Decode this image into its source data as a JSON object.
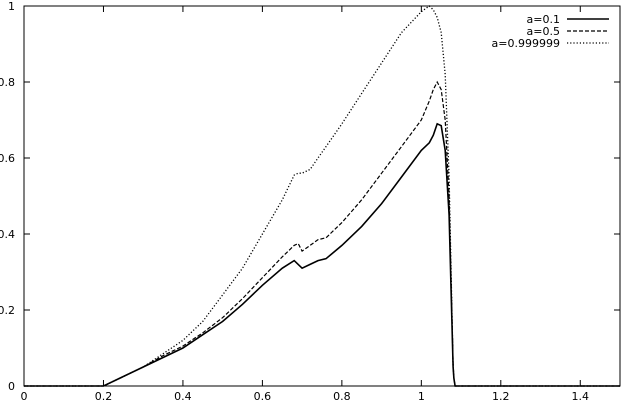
{
  "chart_data": {
    "type": "line",
    "title": "",
    "xlabel": "",
    "ylabel": "",
    "xlim": [
      0,
      1.5
    ],
    "ylim": [
      0,
      1
    ],
    "xticks": [
      "0",
      "0.2",
      "0.4",
      "0.6",
      "0.8",
      "1",
      "1.2",
      "1.4"
    ],
    "yticks": [
      "0",
      "0.2",
      "0.4",
      "0.6",
      "0.8",
      "1"
    ],
    "grid": false,
    "legend": "top-right",
    "series": [
      {
        "name": "a=0.1",
        "style": "solid",
        "x": [
          0,
          0.2,
          0.24,
          0.3,
          0.35,
          0.4,
          0.45,
          0.5,
          0.55,
          0.6,
          0.65,
          0.68,
          0.69,
          0.7,
          0.72,
          0.74,
          0.76,
          0.8,
          0.85,
          0.9,
          0.95,
          1.0,
          1.02,
          1.03,
          1.04,
          1.05,
          1.06,
          1.07,
          1.075,
          1.08,
          1.082,
          1.085,
          1.1,
          1.5
        ],
        "y": [
          0,
          0,
          0.02,
          0.05,
          0.075,
          0.1,
          0.135,
          0.17,
          0.215,
          0.265,
          0.31,
          0.33,
          0.32,
          0.31,
          0.32,
          0.33,
          0.335,
          0.37,
          0.42,
          0.48,
          0.55,
          0.62,
          0.64,
          0.66,
          0.69,
          0.685,
          0.62,
          0.45,
          0.25,
          0.05,
          0.02,
          0,
          0,
          0
        ]
      },
      {
        "name": "a=0.5",
        "style": "dashed",
        "x": [
          0,
          0.2,
          0.24,
          0.3,
          0.35,
          0.4,
          0.45,
          0.5,
          0.55,
          0.6,
          0.65,
          0.68,
          0.69,
          0.7,
          0.72,
          0.74,
          0.76,
          0.8,
          0.85,
          0.9,
          0.95,
          1.0,
          1.02,
          1.03,
          1.04,
          1.05,
          1.06,
          1.07,
          1.075,
          1.08,
          1.082,
          1.085,
          1.1,
          1.5
        ],
        "y": [
          0,
          0,
          0.02,
          0.05,
          0.08,
          0.105,
          0.14,
          0.18,
          0.23,
          0.285,
          0.34,
          0.37,
          0.375,
          0.355,
          0.37,
          0.385,
          0.39,
          0.43,
          0.49,
          0.56,
          0.63,
          0.7,
          0.75,
          0.78,
          0.8,
          0.78,
          0.7,
          0.5,
          0.28,
          0.06,
          0.02,
          0,
          0,
          0
        ]
      },
      {
        "name": "a=0.999999",
        "style": "dotted",
        "x": [
          0,
          0.2,
          0.24,
          0.3,
          0.35,
          0.4,
          0.45,
          0.5,
          0.55,
          0.6,
          0.65,
          0.68,
          0.69,
          0.7,
          0.72,
          0.74,
          0.76,
          0.8,
          0.85,
          0.9,
          0.95,
          1.0,
          1.02,
          1.03,
          1.04,
          1.05,
          1.06,
          1.07,
          1.075,
          1.08,
          1.082,
          1.085,
          1.1,
          1.5
        ],
        "y": [
          0,
          0,
          0.02,
          0.05,
          0.085,
          0.12,
          0.17,
          0.24,
          0.31,
          0.4,
          0.49,
          0.555,
          0.56,
          0.56,
          0.57,
          0.6,
          0.63,
          0.69,
          0.77,
          0.85,
          0.93,
          0.985,
          1.0,
          0.99,
          0.97,
          0.93,
          0.82,
          0.55,
          0.3,
          0.05,
          0.02,
          0,
          0,
          0
        ]
      }
    ]
  }
}
